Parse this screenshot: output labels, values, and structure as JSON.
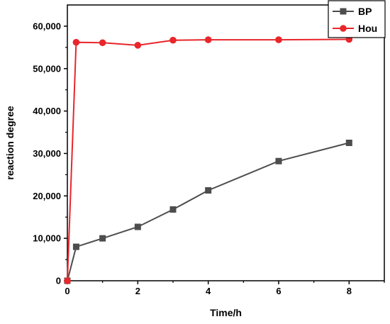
{
  "chart_data": {
    "type": "line",
    "title": "",
    "xlabel": "Time/h",
    "ylabel": "reaction degree",
    "xlim": [
      0,
      9
    ],
    "ylim": [
      0,
      65000
    ],
    "x_ticks": [
      0,
      2,
      4,
      6,
      8
    ],
    "y_ticks": [
      0,
      10000,
      20000,
      30000,
      40000,
      50000,
      60000
    ],
    "x_tick_labels": [
      "0",
      "2",
      "4",
      "6",
      "8"
    ],
    "y_tick_labels": [
      "0",
      "10,000",
      "20,000",
      "30,000",
      "40,000",
      "50,000",
      "60,000"
    ],
    "grid": false,
    "legend_position": "top-right",
    "series": [
      {
        "name": "BP",
        "color": "#4d4d4d",
        "marker": "square",
        "x": [
          0,
          0.25,
          1,
          2,
          3,
          4,
          6,
          8
        ],
        "y": [
          0,
          8000,
          10000,
          12700,
          16800,
          21300,
          28200,
          32500
        ]
      },
      {
        "name": "Hou",
        "color": "#e8262b",
        "marker": "circle",
        "x": [
          0,
          0.25,
          1,
          2,
          3,
          4,
          6,
          8
        ],
        "y": [
          0,
          56200,
          56100,
          55500,
          56700,
          56800,
          56800,
          56900
        ]
      }
    ]
  }
}
